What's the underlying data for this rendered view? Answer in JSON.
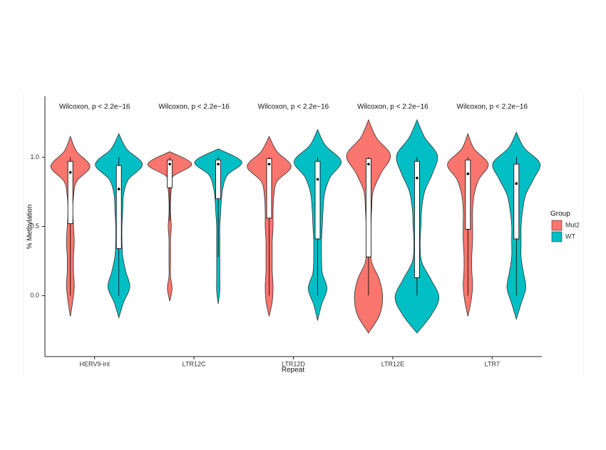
{
  "chart_data": {
    "type": "violin",
    "x_label": "Repeat",
    "y_label": "% Methylation",
    "categories": [
      "HERV9-int",
      "LTR12C",
      "LTR12D",
      "LTR12E",
      "LTR7"
    ],
    "annotations": [
      "Wilcoxon, p < 2.2e−16",
      "Wilcoxon, p < 2.2e−16",
      "Wilcoxon, p < 2.2e−16",
      "Wilcoxon, p < 2.2e−16",
      "Wilcoxon, p < 2.2e−16"
    ],
    "ylim": [
      -0.44,
      1.44
    ],
    "yticks": [
      {
        "value": 0,
        "label": "0.0"
      },
      {
        "value": 0.5,
        "label": "0.5"
      },
      {
        "value": 1,
        "label": "1.0"
      }
    ],
    "legend_title": "Group",
    "legend_position": "right",
    "series": [
      {
        "name": "Mut2",
        "color": "#F8766D",
        "violins": [
          {
            "range": [
              -0.15,
              1.15
            ],
            "density": [
              0,
              3,
              5,
              4,
              4,
              5,
              4,
              3,
              4,
              8,
              25,
              8,
              0
            ],
            "box": {
              "lower": 0,
              "q1": 0.52,
              "median": 0.89,
              "q3": 0.97,
              "upper": 1
            }
          },
          {
            "range": [
              -0.04,
              1.04
            ],
            "density": [
              0,
              3,
              1,
              1,
              1,
              1,
              2,
              1,
              1,
              2,
              4,
              28,
              0
            ],
            "box": {
              "lower": 0.54,
              "q1": 0.78,
              "median": 0.95,
              "q3": 0.98,
              "upper": 1
            }
          },
          {
            "range": [
              -0.15,
              1.15
            ],
            "density": [
              0,
              4,
              5,
              4,
              4,
              4,
              5,
              5,
              6,
              10,
              28,
              10,
              0
            ],
            "box": {
              "lower": 0,
              "q1": 0.56,
              "median": 0.95,
              "q3": 0.99,
              "upper": 1
            }
          },
          {
            "range": [
              -0.27,
              1.27
            ],
            "density": [
              0,
              14,
              18,
              14,
              4,
              3,
              3,
              4,
              6,
              16,
              28,
              10,
              0
            ],
            "box": {
              "lower": 0,
              "q1": 0.28,
              "median": 0.95,
              "q3": 0.99,
              "upper": 1
            }
          },
          {
            "range": [
              -0.15,
              1.17
            ],
            "density": [
              0,
              4,
              6,
              5,
              5,
              6,
              6,
              6,
              8,
              14,
              26,
              8,
              0
            ],
            "box": {
              "lower": 0,
              "q1": 0.48,
              "median": 0.88,
              "q3": 0.98,
              "upper": 1
            }
          }
        ]
      },
      {
        "name": "WT",
        "color": "#00BFC4",
        "violins": [
          {
            "range": [
              -0.16,
              1.17
            ],
            "density": [
              0,
              6,
              14,
              9,
              5,
              4,
              4,
              5,
              6,
              12,
              30,
              10,
              0
            ],
            "box": {
              "lower": 0,
              "q1": 0.34,
              "median": 0.77,
              "q3": 0.94,
              "upper": 1
            }
          },
          {
            "range": [
              -0.06,
              1.06
            ],
            "density": [
              0,
              2,
              2,
              2,
              2,
              2,
              2,
              3,
              4,
              6,
              12,
              30,
              0
            ],
            "box": {
              "lower": 0.28,
              "q1": 0.7,
              "median": 0.95,
              "q3": 0.98,
              "upper": 1
            }
          },
          {
            "range": [
              -0.18,
              1.2
            ],
            "density": [
              0,
              5,
              12,
              6,
              5,
              5,
              6,
              7,
              9,
              16,
              30,
              10,
              0
            ],
            "box": {
              "lower": 0,
              "q1": 0.41,
              "median": 0.84,
              "q3": 0.97,
              "upper": 1
            }
          },
          {
            "range": [
              -0.27,
              1.27
            ],
            "density": [
              0,
              18,
              28,
              18,
              6,
              4,
              5,
              6,
              10,
              20,
              26,
              10,
              0
            ],
            "box": {
              "lower": 0,
              "q1": 0.13,
              "median": 0.85,
              "q3": 0.97,
              "upper": 1
            }
          },
          {
            "range": [
              -0.17,
              1.18
            ],
            "density": [
              0,
              6,
              12,
              9,
              6,
              6,
              6,
              8,
              12,
              22,
              30,
              10,
              0
            ],
            "box": {
              "lower": 0,
              "q1": 0.41,
              "median": 0.81,
              "q3": 0.95,
              "upper": 1
            }
          }
        ]
      }
    ]
  }
}
